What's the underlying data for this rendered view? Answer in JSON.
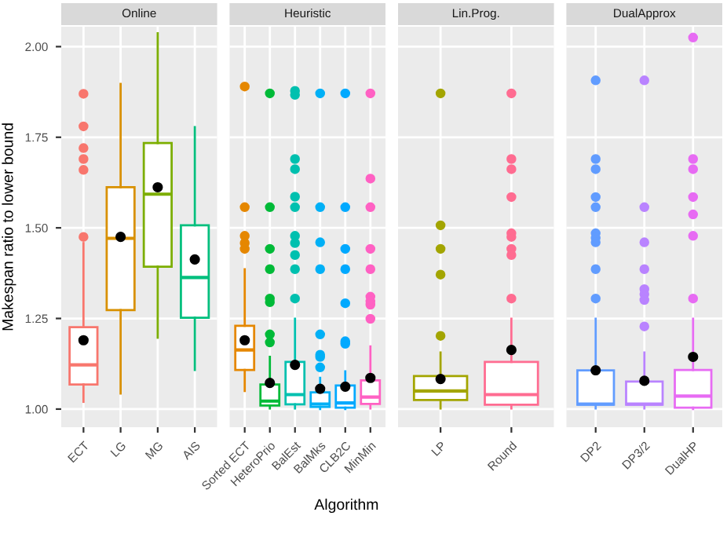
{
  "chart_data": [
    {
      "type": "box",
      "title": "Online",
      "ylabel": "Makespan ratio to lower bound",
      "categories": [
        "ECT",
        "LG",
        "MG",
        "AIS"
      ],
      "colors": [
        "#f8766d",
        "#d89000",
        "#7cae00",
        "#00bf7d"
      ],
      "ylim": [
        0.95,
        2.055
      ],
      "yticks": [
        {
          "value": 1.0,
          "label": "1.00"
        },
        {
          "value": 1.25,
          "label": "1.25"
        },
        {
          "value": 1.5,
          "label": "1.50"
        },
        {
          "value": 1.75,
          "label": "1.75"
        },
        {
          "value": 2.0,
          "label": "2.00"
        }
      ],
      "grid": true,
      "boxes": [
        {
          "low": 1.02,
          "q1": 1.068,
          "median": 1.122,
          "q3": 1.226,
          "high": 1.458,
          "mean": 1.19,
          "outliers": [
            1.87,
            1.78,
            1.72,
            1.69,
            1.66,
            1.475
          ]
        },
        {
          "low": 1.043,
          "q1": 1.273,
          "median": 1.471,
          "q3": 1.612,
          "high": 1.897,
          "mean": 1.475
        },
        {
          "low": 1.197,
          "q1": 1.393,
          "median": 1.593,
          "q3": 1.734,
          "high": 2.037,
          "mean": 1.612
        },
        {
          "low": 1.108,
          "q1": 1.252,
          "median": 1.363,
          "q3": 1.507,
          "high": 1.778,
          "mean": 1.413
        }
      ]
    },
    {
      "type": "box",
      "title": "Heuristic",
      "xlabel": "Algorithm",
      "categories": [
        "Sorted ECT",
        "HeteroPrio",
        "BalEst",
        "BalMks",
        "CLB2C",
        "MinMin"
      ],
      "colors": [
        "#e58700",
        "#00ba38",
        "#00c0af",
        "#00b0f6",
        "#00a9ff",
        "#ff61c3"
      ],
      "ylim": [
        0.95,
        2.055
      ],
      "grid": true,
      "tick_labels": "x",
      "boxes": [
        {
          "low": 1.05,
          "q1": 1.108,
          "median": 1.163,
          "q3": 1.23,
          "high": 1.386,
          "mean": 1.19,
          "outliers": [
            1.89,
            1.557,
            1.478,
            1.458,
            1.442
          ]
        },
        {
          "low": 1.002,
          "q1": 1.01,
          "median": 1.022,
          "q3": 1.068,
          "high": 1.144,
          "mean": 1.072,
          "outliers": [
            1.871,
            1.557,
            1.442,
            1.386,
            1.305,
            1.295,
            1.206,
            1.184
          ]
        },
        {
          "low": 1.002,
          "q1": 1.013,
          "median": 1.04,
          "q3": 1.13,
          "high": 1.249,
          "mean": 1.122,
          "outliers": [
            1.878,
            1.867,
            1.69,
            1.662,
            1.586,
            1.557,
            1.478,
            1.458,
            1.425,
            1.386,
            1.305
          ]
        },
        {
          "low": 1.0,
          "q1": 1.006,
          "median": 1.014,
          "q3": 1.046,
          "high": 1.086,
          "mean": 1.056,
          "outliers": [
            1.871,
            1.557,
            1.46,
            1.386,
            1.206,
            1.15,
            1.144,
            1.115
          ]
        },
        {
          "low": 1.0,
          "q1": 1.004,
          "median": 1.017,
          "q3": 1.065,
          "high": 1.104,
          "mean": 1.062,
          "outliers": [
            1.871,
            1.557,
            1.442,
            1.386,
            1.292,
            1.187,
            1.18
          ]
        },
        {
          "low": 1.002,
          "q1": 1.014,
          "median": 1.033,
          "q3": 1.079,
          "high": 1.173,
          "mean": 1.086,
          "outliers": [
            1.871,
            1.636,
            1.557,
            1.442,
            1.386,
            1.31,
            1.297,
            1.288,
            1.249
          ]
        }
      ]
    },
    {
      "type": "box",
      "title": "Lin.Prog.",
      "categories": [
        "LP",
        "Round"
      ],
      "colors": [
        "#a3a500",
        "#ff6c91"
      ],
      "ylim": [
        0.95,
        2.055
      ],
      "grid": true,
      "tick_labels": "x",
      "boxes": [
        {
          "low": 1.002,
          "q1": 1.025,
          "median": 1.05,
          "q3": 1.091,
          "high": 1.156,
          "mean": 1.083,
          "outliers": [
            1.871,
            1.507,
            1.442,
            1.371,
            1.202
          ]
        },
        {
          "low": 1.002,
          "q1": 1.012,
          "median": 1.04,
          "q3": 1.13,
          "high": 1.249,
          "mean": 1.163,
          "outliers": [
            1.871,
            1.69,
            1.662,
            1.585,
            1.485,
            1.475,
            1.442,
            1.425,
            1.305
          ]
        }
      ]
    },
    {
      "type": "box",
      "title": "DualApprox",
      "categories": [
        "DP2",
        "DP3/2",
        "DualHP"
      ],
      "colors": [
        "#619cff",
        "#b983ff",
        "#e76bf3"
      ],
      "ylim": [
        0.95,
        2.055
      ],
      "grid": true,
      "tick_labels": "x",
      "boxes": [
        {
          "low": 1.002,
          "q1": 1.012,
          "median": 1.014,
          "q3": 1.107,
          "high": 1.249,
          "mean": 1.107,
          "outliers": [
            1.907,
            1.69,
            1.662,
            1.585,
            1.557,
            1.485,
            1.472,
            1.46,
            1.386,
            1.305
          ]
        },
        {
          "low": 1.002,
          "q1": 1.012,
          "median": 1.014,
          "q3": 1.076,
          "high": 1.156,
          "mean": 1.078,
          "outliers": [
            1.907,
            1.557,
            1.46,
            1.386,
            1.331,
            1.317,
            1.301,
            1.228
          ]
        },
        {
          "low": 1.0,
          "q1": 1.004,
          "median": 1.036,
          "q3": 1.108,
          "high": 1.249,
          "mean": 1.144,
          "outliers": [
            2.025,
            1.69,
            1.662,
            1.585,
            1.537,
            1.478,
            1.305
          ]
        }
      ]
    }
  ]
}
